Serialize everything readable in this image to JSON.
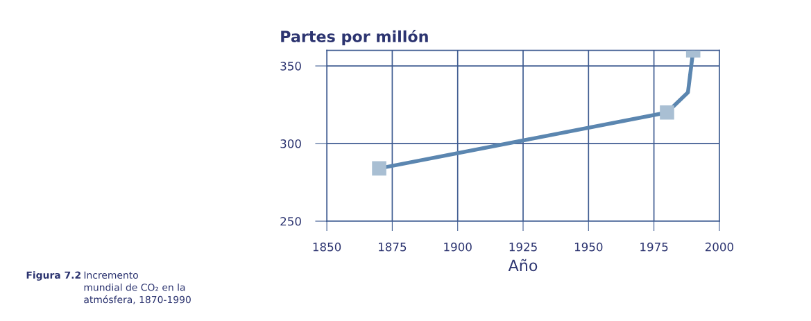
{
  "chart_data": {
    "type": "line",
    "ylabel": "Partes por millón",
    "xlabel": "Año",
    "annotations": [
      "Figura 7.2",
      "Incremento\nmundial de CO₂ en la\natmósfera, 1870-1990"
    ],
    "series": [
      {
        "color": "#5b86b0",
        "x": [
          1870,
          1980,
          1988,
          1990
        ],
        "values": [
          284,
          320,
          333,
          360
        ],
        "marker": "none"
      },
      {
        "type": "scatter",
        "color": "#a9bfd3",
        "x": [
          1870,
          1980,
          1990
        ],
        "values": [
          284,
          320,
          360
        ],
        "marker": "square"
      }
    ],
    "xlim": [
      1850,
      2000
    ],
    "xticks": [
      1850,
      1875,
      1900,
      1925,
      1950,
      1975,
      2000
    ],
    "ylim": [
      250,
      360
    ],
    "yticks": [
      250,
      300,
      350
    ],
    "grid": true
  }
}
